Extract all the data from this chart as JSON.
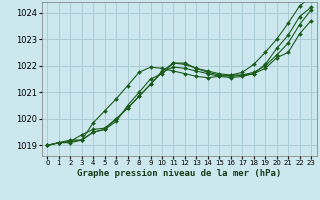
{
  "xlabel": "Graphe pression niveau de la mer (hPa)",
  "xlim": [
    -0.5,
    23.5
  ],
  "ylim": [
    1018.6,
    1024.4
  ],
  "yticks": [
    1019,
    1020,
    1021,
    1022,
    1023,
    1024
  ],
  "xticks": [
    0,
    1,
    2,
    3,
    4,
    5,
    6,
    7,
    8,
    9,
    10,
    11,
    12,
    13,
    14,
    15,
    16,
    17,
    18,
    19,
    20,
    21,
    22,
    23
  ],
  "bg_color": "#cce8ee",
  "grid_color": "#aaccd4",
  "line_color": "#1a5c1a",
  "series": [
    [
      1019.0,
      1019.1,
      1019.1,
      1019.2,
      1019.5,
      1019.6,
      1019.9,
      1020.5,
      1021.0,
      1021.5,
      1021.7,
      1022.1,
      1022.1,
      1021.9,
      1021.8,
      1021.7,
      1021.65,
      1021.65,
      1021.7,
      1021.9,
      1022.3,
      1022.5,
      1023.2,
      1023.7
    ],
    [
      1019.0,
      1019.1,
      1019.2,
      1019.2,
      1019.5,
      1019.6,
      1020.0,
      1020.4,
      1020.85,
      1021.3,
      1021.8,
      1022.1,
      1022.05,
      1021.9,
      1021.75,
      1021.65,
      1021.6,
      1021.65,
      1021.75,
      1022.0,
      1022.4,
      1022.85,
      1023.55,
      1024.1
    ],
    [
      1019.0,
      1019.1,
      1019.15,
      1019.4,
      1019.6,
      1019.65,
      1020.0,
      1020.4,
      1020.85,
      1021.3,
      1021.75,
      1021.95,
      1021.9,
      1021.8,
      1021.7,
      1021.6,
      1021.55,
      1021.6,
      1021.7,
      1022.05,
      1022.65,
      1023.15,
      1023.85,
      1024.2
    ],
    [
      1019.0,
      1019.1,
      1019.15,
      1019.2,
      1019.85,
      1020.3,
      1020.75,
      1021.25,
      1021.75,
      1021.95,
      1021.9,
      1021.8,
      1021.7,
      1021.6,
      1021.55,
      1021.6,
      1021.65,
      1021.75,
      1022.05,
      1022.5,
      1023.0,
      1023.6,
      1024.25,
      1024.6
    ]
  ]
}
